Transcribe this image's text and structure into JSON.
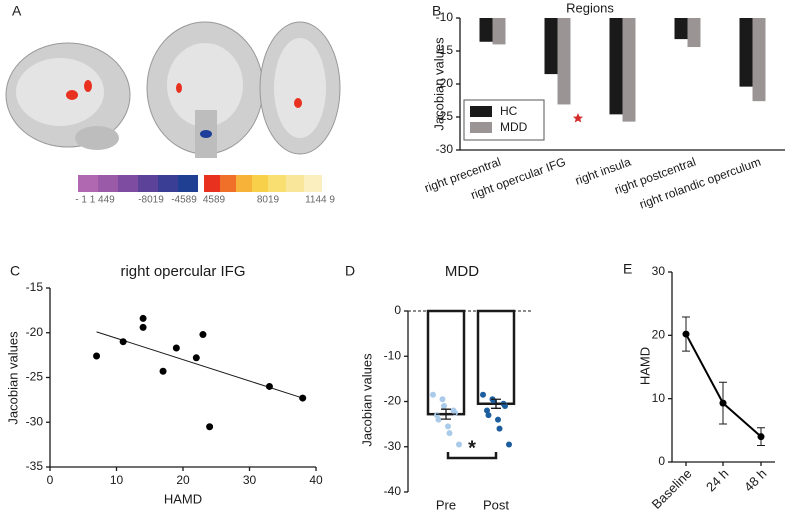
{
  "panels": [
    "A",
    "B",
    "C",
    "D",
    "E"
  ],
  "colorbar": {
    "labels": [
      "- 1 1 449",
      "-8019",
      "-4589",
      "4589",
      "8019",
      "1144 9"
    ]
  },
  "chart_data": [
    {
      "type": "bar",
      "title": "Regions",
      "y_label": "Jacobian values",
      "categories": [
        "right precentral",
        "right opercular IFG",
        "right insula",
        "right postcentral",
        "right rolandic operculum"
      ],
      "series": [
        {
          "name": "HC",
          "color": "#1a1a1a",
          "values": [
            -13.6,
            -18.5,
            -24.6,
            -13.2,
            -20.4
          ]
        },
        {
          "name": "MDD",
          "color": "#9a9494",
          "values": [
            -14.0,
            -23.1,
            -25.7,
            -14.4,
            -22.6
          ]
        }
      ],
      "ylim": [
        -30,
        -10
      ],
      "yticks": [
        -30,
        -25,
        -20,
        -15,
        -10
      ],
      "legend": "lower-left"
    },
    {
      "type": "scatter",
      "title": "right opercular IFG",
      "x_label": "HAMD",
      "y_label": "Jacobian values",
      "x": [
        7,
        11,
        14,
        14,
        17,
        19,
        22,
        23,
        24,
        33,
        38
      ],
      "values": [
        -22.6,
        -21.0,
        -18.4,
        -19.4,
        -24.3,
        -21.7,
        -22.8,
        -20.2,
        -30.5,
        -26.0,
        -27.3
      ],
      "color": "#000000",
      "trendline": {
        "x": [
          7,
          38
        ],
        "y": [
          -19.9,
          -27.3
        ]
      },
      "xlim": [
        0,
        40
      ],
      "xticks": [
        0,
        10,
        20,
        30,
        40
      ],
      "ylim": [
        -35,
        -15
      ],
      "yticks": [
        -35,
        -30,
        -25,
        -20,
        -15
      ]
    },
    {
      "type": "dotbar",
      "title": "MDD",
      "y_label": "Jacobian values",
      "categories": [
        "Pre",
        "Post"
      ],
      "values": [
        -22.8,
        -20.5
      ],
      "errors": [
        1.1,
        1.0
      ],
      "point_colors": [
        "#a9cbe9",
        "#1d5e9e"
      ],
      "points": [
        [
          -18.5,
          -19.5,
          -21.0,
          -22.0,
          -22.5,
          -23.0,
          -24.0,
          -25.5,
          -27.0,
          -29.5
        ],
        [
          -18.5,
          -19.5,
          -20.0,
          -20.5,
          -21.0,
          -22.0,
          -23.0,
          -24.0,
          -26.0,
          -29.5
        ]
      ],
      "annotation": "*",
      "ylim": [
        -40,
        0
      ],
      "yticks": [
        -40,
        -30,
        -20,
        -10,
        0
      ]
    },
    {
      "type": "line",
      "y_label": "HAMD",
      "categories": [
        "Baseline",
        "24 h",
        "48 h"
      ],
      "values": [
        20.2,
        9.3,
        4.0
      ],
      "errors": [
        2.7,
        3.3,
        1.4
      ],
      "color": "#000000",
      "ylim": [
        0,
        30
      ],
      "yticks": [
        0,
        10,
        20,
        30
      ]
    }
  ]
}
